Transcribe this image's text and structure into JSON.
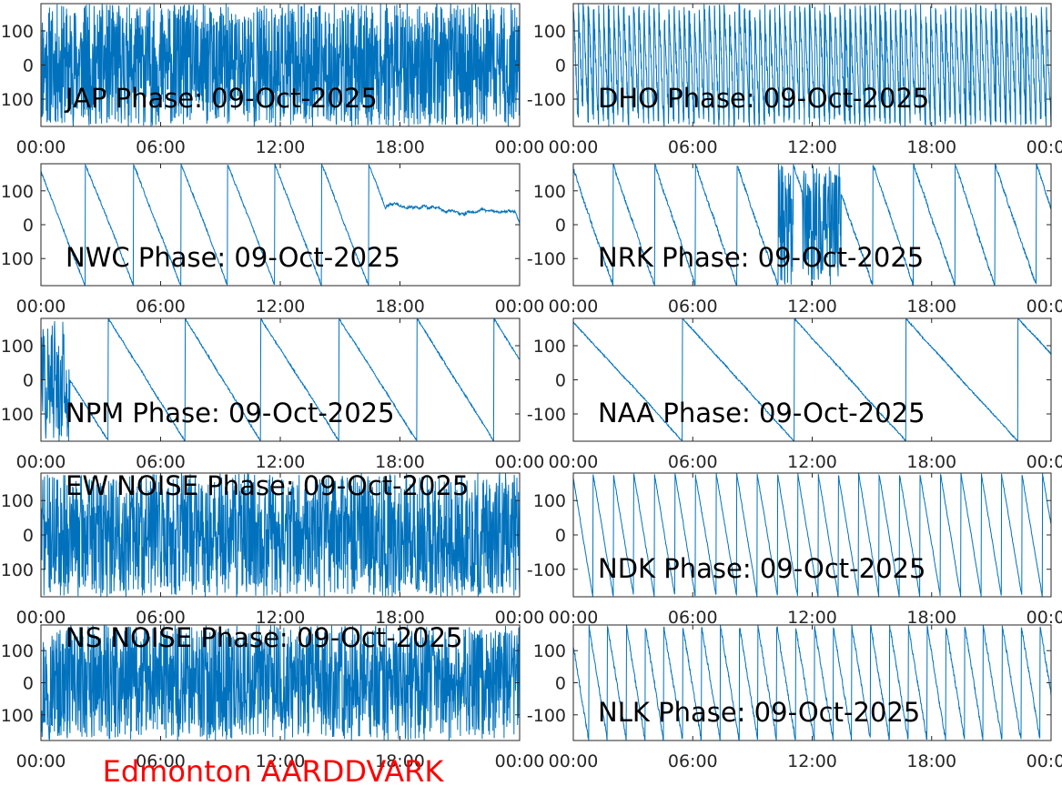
{
  "figure_title": "Edmonton AARDDVARK",
  "colors": {
    "series": "#0072bd",
    "axes": "#262626",
    "title": "#ff0000"
  },
  "chart_data": [
    {
      "type": "line",
      "title": "JAP Phase: 09-Oct-2025",
      "ylim": [
        -180,
        180
      ],
      "yticks": [
        "100",
        "0",
        "-100"
      ],
      "xticks": [
        "00:00",
        "06:00",
        "12:00",
        "18:00",
        "00:00"
      ],
      "series": [
        {
          "values": []
        }
      ]
    },
    {
      "type": "line",
      "title": "DHO Phase: 09-Oct-2025",
      "ylim": [
        -180,
        180
      ],
      "yticks": [
        "100",
        "0",
        "-100"
      ],
      "xticks": [
        "00:00",
        "06:00",
        "12:00",
        "18:00",
        "00:00"
      ],
      "series": [
        {
          "values": []
        }
      ]
    },
    {
      "type": "line",
      "title": "NWC Phase: 09-Oct-2025",
      "ylim": [
        -180,
        180
      ],
      "yticks": [
        "100",
        "0",
        "-100"
      ],
      "xticks": [
        "00:00",
        "06:00",
        "12:00",
        "18:00",
        "00:00"
      ],
      "series": [
        {
          "values": []
        }
      ]
    },
    {
      "type": "line",
      "title": "NRK Phase: 09-Oct-2025",
      "ylim": [
        -180,
        180
      ],
      "yticks": [
        "100",
        "0",
        "-100"
      ],
      "xticks": [
        "00:00",
        "06:00",
        "12:00",
        "18:00",
        "00:00"
      ],
      "series": [
        {
          "values": []
        }
      ]
    },
    {
      "type": "line",
      "title": "NPM Phase: 09-Oct-2025",
      "ylim": [
        -180,
        180
      ],
      "yticks": [
        "100",
        "0",
        "-100"
      ],
      "xticks": [
        "00:00",
        "06:00",
        "12:00",
        "18:00",
        "00:00"
      ],
      "series": [
        {
          "values": []
        }
      ]
    },
    {
      "type": "line",
      "title": "NAA Phase: 09-Oct-2025",
      "ylim": [
        -180,
        180
      ],
      "yticks": [
        "100",
        "0",
        "-100"
      ],
      "xticks": [
        "00:00",
        "06:00",
        "12:00",
        "18:00",
        "00:00"
      ],
      "series": [
        {
          "values": []
        }
      ]
    },
    {
      "type": "line",
      "title": "EW NOISE Phase: 09-Oct-2025",
      "ylim": [
        -180,
        180
      ],
      "yticks": [
        "100",
        "0",
        "-100"
      ],
      "xticks": [
        "00:00",
        "06:00",
        "12:00",
        "18:00",
        "00:00"
      ],
      "series": [
        {
          "values": []
        }
      ]
    },
    {
      "type": "line",
      "title": "NDK Phase: 09-Oct-2025",
      "ylim": [
        -180,
        180
      ],
      "yticks": [
        "100",
        "0",
        "-100"
      ],
      "xticks": [
        "00:00",
        "06:00",
        "12:00",
        "18:00",
        "00:00"
      ],
      "series": [
        {
          "values": []
        }
      ]
    },
    {
      "type": "line",
      "title": "NS NOISE Phase: 09-Oct-2025",
      "ylim": [
        -180,
        180
      ],
      "yticks": [
        "100",
        "0",
        "-100"
      ],
      "xticks": [
        "00:00",
        "06:00",
        "12:00",
        "18:00",
        "00:00"
      ],
      "series": [
        {
          "values": []
        }
      ]
    },
    {
      "type": "line",
      "title": "NLK Phase: 09-Oct-2025",
      "ylim": [
        -180,
        180
      ],
      "yticks": [
        "100",
        "0",
        "-100"
      ],
      "xticks": [
        "00:00",
        "06:00",
        "12:00",
        "18:00",
        "00:00"
      ],
      "series": [
        {
          "values": []
        }
      ]
    }
  ]
}
